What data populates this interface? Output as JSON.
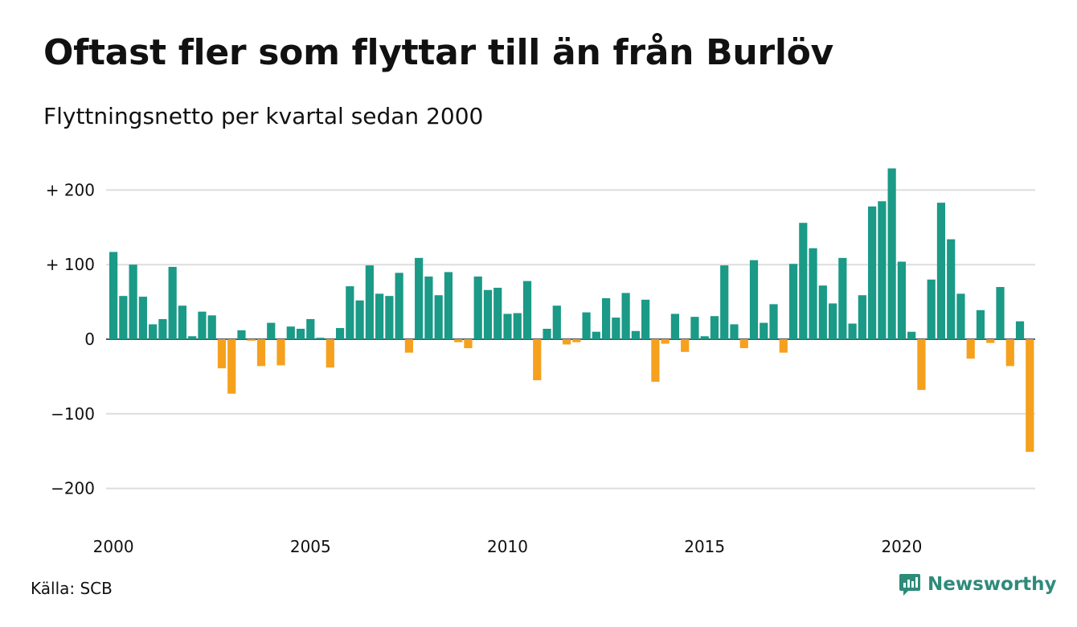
{
  "header": {
    "title": "Oftast fler som flyttar till än från Burlöv",
    "subtitle": "Flyttningsnetto per kvartal sedan 2000"
  },
  "footer": {
    "source": "Källa: SCB",
    "brand": "Newsworthy"
  },
  "colors": {
    "positive": "#1a9a87",
    "negative": "#f5a11e",
    "grid": "#dddddd",
    "brand": "#2e8b7a"
  },
  "chart_data": {
    "type": "bar",
    "title": "Oftast fler som flyttar till än från Burlöv",
    "subtitle": "Flyttningsnetto per kvartal sedan 2000",
    "xlabel": "",
    "ylabel": "",
    "x_start": "2000Q1",
    "x_ticks": [
      "2000",
      "2005",
      "2010",
      "2015",
      "2020"
    ],
    "y_ticks": [
      200,
      100,
      0,
      -100,
      -200
    ],
    "y_tick_labels": [
      "+ 200",
      "+ 100",
      "0",
      "−100",
      "−200"
    ],
    "ylim": [
      -250,
      250
    ],
    "grid": true,
    "legend": "none",
    "values": [
      117,
      58,
      100,
      57,
      20,
      27,
      97,
      45,
      4,
      37,
      32,
      -39,
      -73,
      12,
      -2,
      -36,
      22,
      -35,
      17,
      14,
      27,
      2,
      -38,
      15,
      71,
      52,
      99,
      61,
      58,
      89,
      -18,
      109,
      84,
      59,
      90,
      -4,
      -12,
      84,
      66,
      69,
      34,
      35,
      78,
      -55,
      14,
      45,
      -7,
      -4,
      36,
      10,
      55,
      29,
      62,
      11,
      53,
      -57,
      -6,
      34,
      -17,
      30,
      4,
      31,
      99,
      20,
      -12,
      106,
      22,
      47,
      -18,
      101,
      156,
      122,
      72,
      48,
      109,
      21,
      59,
      178,
      185,
      229,
      104,
      10,
      -68,
      80,
      183,
      134,
      61,
      -26,
      39,
      -5,
      70,
      -36,
      24,
      -151
    ]
  }
}
